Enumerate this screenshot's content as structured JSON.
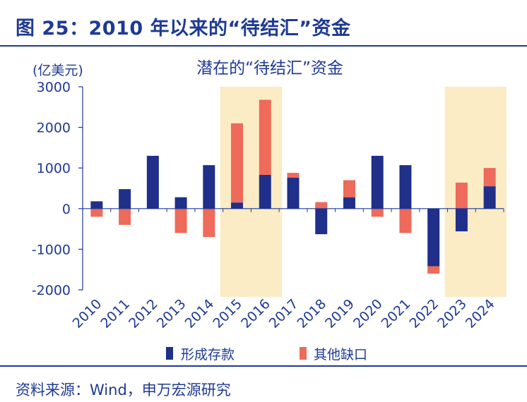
{
  "header": {
    "figure_title": "图 25：2010 年以来的“待结汇”资金"
  },
  "footer": {
    "source": "资料来源：Wind，申万宏源研究"
  },
  "colors": {
    "brand": "#1f3a93",
    "deposit": "#1f2f8a",
    "gap": "#ee6a5a",
    "highlight": "#fbecc5",
    "axis": "#1f3a93"
  },
  "chart_data": {
    "type": "bar",
    "stacked": true,
    "title": "潜在的“待结汇”资金",
    "unit": "(亿美元)",
    "xlabel": "",
    "ylabel": "",
    "ylim": [
      -2000,
      3000
    ],
    "yticks": [
      3000,
      2000,
      1000,
      0,
      -1000,
      -2000
    ],
    "categories": [
      "2010",
      "2011",
      "2012",
      "2013",
      "2014",
      "2015",
      "2016",
      "2017",
      "2018",
      "2019",
      "2020",
      "2021",
      "2022",
      "2023",
      "2024"
    ],
    "series": [
      {
        "name": "形成存款",
        "values": [
          180,
          480,
          1300,
          280,
          1070,
          150,
          830,
          760,
          -630,
          280,
          1300,
          1070,
          -1420,
          -560,
          550
        ]
      },
      {
        "name": "其他缺口",
        "values": [
          -200,
          -400,
          0,
          -600,
          -700,
          1950,
          1850,
          120,
          160,
          420,
          -200,
          -600,
          -180,
          640,
          450
        ]
      }
    ],
    "highlight_ranges": [
      [
        "2015",
        "2016"
      ],
      [
        "2023",
        "2024"
      ]
    ],
    "legend_position": "bottom",
    "grid": false
  }
}
